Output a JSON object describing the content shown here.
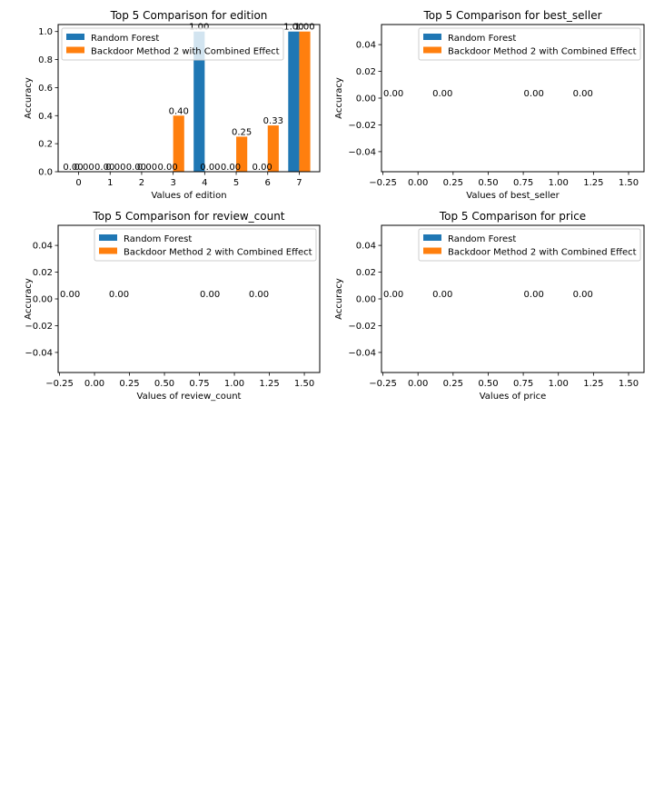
{
  "colors": {
    "series_a": "#1f77b4",
    "series_b": "#ff7f0e",
    "axes": "#000000",
    "background": "#ffffff"
  },
  "chart_data": [
    {
      "type": "bar",
      "title": "Top 5 Comparison for edition",
      "xlabel": "Values of edition",
      "ylabel": "Accuracy",
      "xlim": [
        -0.65,
        7.65
      ],
      "ylim": [
        0,
        1.05
      ],
      "x_ticks": [
        0,
        1,
        2,
        3,
        4,
        5,
        6,
        7
      ],
      "x_tick_labels": [
        "0",
        "1",
        "2",
        "3",
        "4",
        "5",
        "6",
        "7"
      ],
      "y_ticks": [
        0,
        0.2,
        0.4,
        0.6,
        0.8,
        1.0
      ],
      "y_tick_labels": [
        "0.0",
        "0.2",
        "0.4",
        "0.6",
        "0.8",
        "1.0"
      ],
      "bar_width": 0.35,
      "legend_position": "upper left",
      "series": [
        {
          "name": "Random Forest",
          "color": "#1f77b4",
          "offset": -0.175,
          "x": [
            0,
            1,
            2,
            3,
            4,
            5,
            6,
            7
          ],
          "values": [
            0,
            0,
            0,
            0,
            1.0,
            0,
            0,
            1.0
          ],
          "labels": [
            "0.00",
            "0.00",
            "0.00",
            "0.00",
            "1.00",
            "0.00",
            "0.00",
            "1.00"
          ]
        },
        {
          "name": "Backdoor Method 2 with Combined Effect",
          "color": "#ff7f0e",
          "offset": 0.175,
          "x": [
            0,
            1,
            2,
            3,
            4,
            5,
            6,
            7
          ],
          "values": [
            0,
            0,
            0,
            0.4,
            0,
            0.25,
            0.33,
            1.0
          ],
          "labels": [
            "0.00",
            "0.00",
            "0.00",
            "0.40",
            "0.00",
            "0.25",
            "0.33",
            "1.00"
          ]
        }
      ]
    },
    {
      "type": "bar",
      "title": "Top 5 Comparison for best_seller",
      "xlabel": "Values of best_seller",
      "ylabel": "Accuracy",
      "xlim": [
        -0.26,
        1.61
      ],
      "ylim": [
        -0.055,
        0.055
      ],
      "x_ticks": [
        -0.25,
        0,
        0.25,
        0.5,
        0.75,
        1.0,
        1.25,
        1.5
      ],
      "x_tick_labels": [
        "−0.25",
        "0.00",
        "0.25",
        "0.50",
        "0.75",
        "1.00",
        "1.25",
        "1.50"
      ],
      "y_ticks": [
        -0.04,
        -0.02,
        0,
        0.02,
        0.04
      ],
      "y_tick_labels": [
        "−0.04",
        "−0.02",
        "0.00",
        "0.02",
        "0.04"
      ],
      "bar_width": 0.35,
      "legend_position": "upper right",
      "series": [
        {
          "name": "Random Forest",
          "color": "#1f77b4",
          "offset": -0.175,
          "x": [
            0,
            1
          ],
          "values": [
            0,
            0
          ],
          "labels": [
            "0.00",
            "0.00"
          ]
        },
        {
          "name": "Backdoor Method 2 with Combined Effect",
          "color": "#ff7f0e",
          "offset": 0.175,
          "x": [
            0,
            1
          ],
          "values": [
            0,
            0
          ],
          "labels": [
            "0.00",
            "0.00"
          ]
        }
      ]
    },
    {
      "type": "bar",
      "title": "Top 5 Comparison for review_count",
      "xlabel": "Values of review_count",
      "ylabel": "Accuracy",
      "xlim": [
        -0.26,
        1.61
      ],
      "ylim": [
        -0.055,
        0.055
      ],
      "x_ticks": [
        -0.25,
        0,
        0.25,
        0.5,
        0.75,
        1.0,
        1.25,
        1.5
      ],
      "x_tick_labels": [
        "−0.25",
        "0.00",
        "0.25",
        "0.50",
        "0.75",
        "1.00",
        "1.25",
        "1.50"
      ],
      "y_ticks": [
        -0.04,
        -0.02,
        0,
        0.02,
        0.04
      ],
      "y_tick_labels": [
        "−0.04",
        "−0.02",
        "0.00",
        "0.02",
        "0.04"
      ],
      "bar_width": 0.35,
      "legend_position": "upper right",
      "series": [
        {
          "name": "Random Forest",
          "color": "#1f77b4",
          "offset": -0.175,
          "x": [
            0,
            1
          ],
          "values": [
            0,
            0
          ],
          "labels": [
            "0.00",
            "0.00"
          ]
        },
        {
          "name": "Backdoor Method 2 with Combined Effect",
          "color": "#ff7f0e",
          "offset": 0.175,
          "x": [
            0,
            1
          ],
          "values": [
            0,
            0
          ],
          "labels": [
            "0.00",
            "0.00"
          ]
        }
      ]
    },
    {
      "type": "bar",
      "title": "Top 5 Comparison for price",
      "xlabel": "Values of price",
      "ylabel": "Accuracy",
      "xlim": [
        -0.26,
        1.61
      ],
      "ylim": [
        -0.055,
        0.055
      ],
      "x_ticks": [
        -0.25,
        0,
        0.25,
        0.5,
        0.75,
        1.0,
        1.25,
        1.5
      ],
      "x_tick_labels": [
        "−0.25",
        "0.00",
        "0.25",
        "0.50",
        "0.75",
        "1.00",
        "1.25",
        "1.50"
      ],
      "y_ticks": [
        -0.04,
        -0.02,
        0,
        0.02,
        0.04
      ],
      "y_tick_labels": [
        "−0.04",
        "−0.02",
        "0.00",
        "0.02",
        "0.04"
      ],
      "bar_width": 0.35,
      "legend_position": "upper right",
      "series": [
        {
          "name": "Random Forest",
          "color": "#1f77b4",
          "offset": -0.175,
          "x": [
            0,
            1
          ],
          "values": [
            0,
            0
          ],
          "labels": [
            "0.00",
            "0.00"
          ]
        },
        {
          "name": "Backdoor Method 2 with Combined Effect",
          "color": "#ff7f0e",
          "offset": 0.175,
          "x": [
            0,
            1
          ],
          "values": [
            0,
            0
          ],
          "labels": [
            "0.00",
            "0.00"
          ]
        }
      ]
    }
  ]
}
